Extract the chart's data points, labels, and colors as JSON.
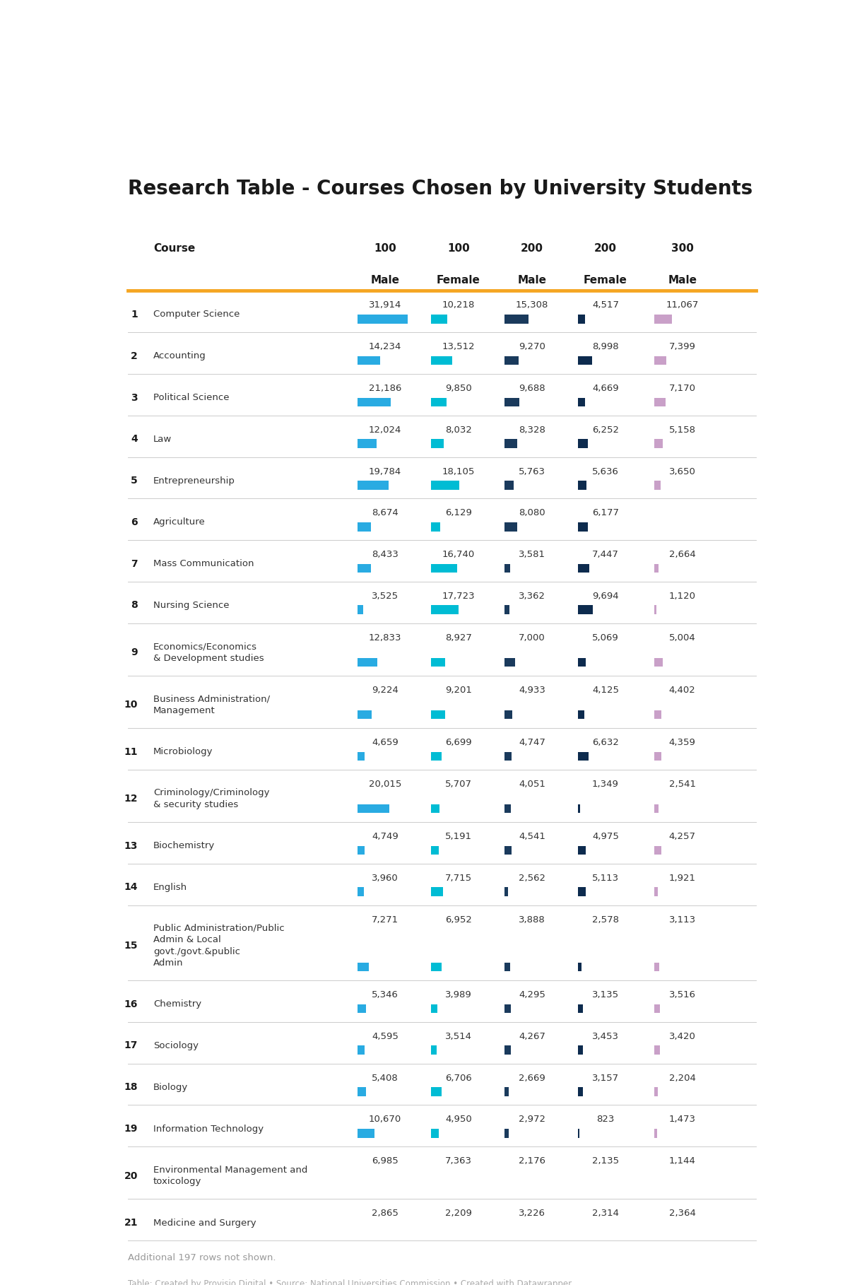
{
  "title": "Research Table - Courses Chosen by University Students",
  "footer_note": "Additional 197 rows not shown.",
  "footer_credit": "Table: Created by Provisio Digital • Source: National Universities Commission • Created with Datawrapper",
  "col_headers_line1": [
    "Course",
    "100",
    "100",
    "200",
    "200",
    "300"
  ],
  "col_headers_line2": [
    "",
    "Male",
    "Female",
    "Male",
    "Female",
    "Male"
  ],
  "rows": [
    {
      "num": "1",
      "course": "Computer Science",
      "v": [
        31914,
        10218,
        15308,
        4517,
        11067
      ]
    },
    {
      "num": "2",
      "course": "Accounting",
      "v": [
        14234,
        13512,
        9270,
        8998,
        7399
      ]
    },
    {
      "num": "3",
      "course": "Political Science",
      "v": [
        21186,
        9850,
        9688,
        4669,
        7170
      ]
    },
    {
      "num": "4",
      "course": "Law",
      "v": [
        12024,
        8032,
        8328,
        6252,
        5158
      ]
    },
    {
      "num": "5",
      "course": "Entrepreneurship",
      "v": [
        19784,
        18105,
        5763,
        5636,
        3650
      ]
    },
    {
      "num": "6",
      "course": "Agriculture",
      "v": [
        8674,
        6129,
        8080,
        6177,
        null
      ]
    },
    {
      "num": "7",
      "course": "Mass Communication",
      "v": [
        8433,
        16740,
        3581,
        7447,
        2664
      ]
    },
    {
      "num": "8",
      "course": "Nursing Science",
      "v": [
        3525,
        17723,
        3362,
        9694,
        1120
      ]
    },
    {
      "num": "9",
      "course": "Economics/Economics\n& Development studies",
      "v": [
        12833,
        8927,
        7000,
        5069,
        5004
      ]
    },
    {
      "num": "10",
      "course": "Business Administration/\nManagement",
      "v": [
        9224,
        9201,
        4933,
        4125,
        4402
      ]
    },
    {
      "num": "11",
      "course": "Microbiology",
      "v": [
        4659,
        6699,
        4747,
        6632,
        4359
      ]
    },
    {
      "num": "12",
      "course": "Criminology/Criminology\n& security studies",
      "v": [
        20015,
        5707,
        4051,
        1349,
        2541
      ]
    },
    {
      "num": "13",
      "course": "Biochemistry",
      "v": [
        4749,
        5191,
        4541,
        4975,
        4257
      ]
    },
    {
      "num": "14",
      "course": "English",
      "v": [
        3960,
        7715,
        2562,
        5113,
        1921
      ]
    },
    {
      "num": "15",
      "course": "Public Administration/Public\nAdmin & Local\ngovt./govt.&public\nAdmin",
      "v": [
        7271,
        6952,
        3888,
        2578,
        3113
      ]
    },
    {
      "num": "16",
      "course": "Chemistry",
      "v": [
        5346,
        3989,
        4295,
        3135,
        3516
      ]
    },
    {
      "num": "17",
      "course": "Sociology",
      "v": [
        4595,
        3514,
        4267,
        3453,
        3420
      ]
    },
    {
      "num": "18",
      "course": "Biology",
      "v": [
        5408,
        6706,
        2669,
        3157,
        2204
      ]
    },
    {
      "num": "19",
      "course": "Information Technology",
      "v": [
        10670,
        4950,
        2972,
        823,
        1473
      ]
    },
    {
      "num": "20",
      "course": "Environmental Management and\ntoxicology",
      "v": [
        6985,
        7363,
        2176,
        2135,
        1144
      ]
    },
    {
      "num": "21",
      "course": "Medicine and Surgery",
      "v": [
        2865,
        2209,
        3226,
        2314,
        2364
      ]
    }
  ],
  "bar_colors": [
    "#29abe2",
    "#00bcd4",
    "#1a3a5c",
    "#0d2b4e",
    "#c9a0c8"
  ],
  "bar_max": 35000,
  "bg_color": "#ffffff",
  "title_color": "#1a1a1a",
  "header_color": "#1a1a1a",
  "row_num_color": "#1a1a1a",
  "course_color": "#333333",
  "value_color": "#333333",
  "divider_color": "#cccccc",
  "orange_line_color": "#f5a623",
  "footer_note_color": "#999999",
  "footer_credit_color": "#aaaaaa"
}
